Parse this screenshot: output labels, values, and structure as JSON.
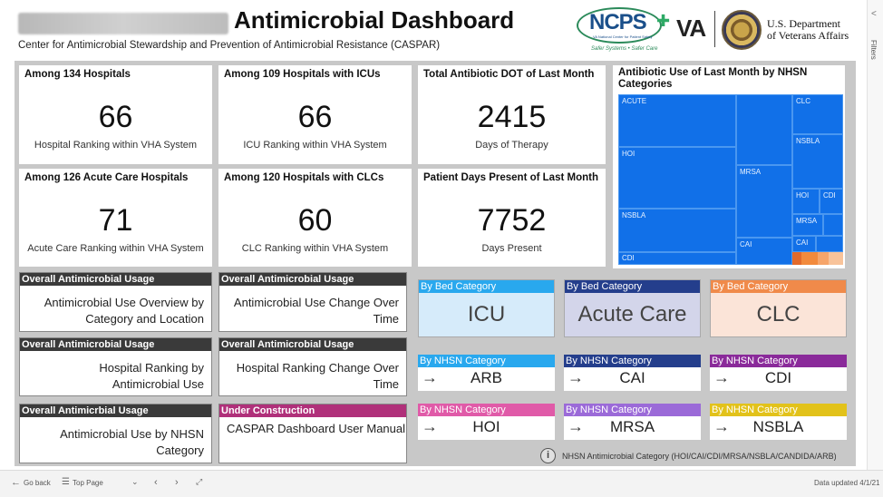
{
  "header": {
    "title": "Antimicrobial Dashboard",
    "subtitle": "Center for Antimicrobial Stewardship and Prevention of Antimicrobial Resistance (CASPAR)",
    "ncps": {
      "name": "NCPS",
      "sub": "VA National Center for Patient Safety",
      "tagline": "Safer Systems • Safer Care"
    },
    "va": "VA",
    "department": "U.S. Department\nof Veterans Affairs"
  },
  "filters_rail": {
    "label": "Filters",
    "chevron": "<"
  },
  "kpis": [
    {
      "label": "Among 134 Hospitals",
      "value": "66",
      "caption": "Hospital Ranking within VHA System"
    },
    {
      "label": "Among 109 Hospitals with ICUs",
      "value": "66",
      "caption": "ICU Ranking within VHA System"
    },
    {
      "label": "Total Antibiotic DOT of Last Month",
      "value": "2415",
      "caption": "Days of Therapy"
    },
    {
      "label": "Among 126 Acute Care Hospitals",
      "value": "71",
      "caption": "Acute Care Ranking within VHA System"
    },
    {
      "label": "Among 120 Hospitals with CLCs",
      "value": "60",
      "caption": "CLC Ranking within VHA System"
    },
    {
      "label": "Patient Days Present of Last Month",
      "value": "7752",
      "caption": "Days Present"
    }
  ],
  "treemap": {
    "title": "Antibiotic Use of Last Month by NHSN Categories",
    "cells": [
      "ACUTE",
      "HOI",
      "NSBLA",
      "CDI",
      "MRSA",
      "CAI",
      "CLC",
      "NSBLA",
      "HOI",
      "CDI",
      "MRSA",
      "CAI"
    ]
  },
  "nav_cards": [
    {
      "header": "Overall Antimicrobial Usage",
      "body": "Antimicrobial Use Overview by\nCategory and Location"
    },
    {
      "header": "Overall Antimicrobial Usage",
      "body": "Antimicrobial Use Change Over\nTime"
    },
    {
      "header": "Overall Antimicrobial Usage",
      "body": "Hospital Ranking by\nAntimicrobial Use"
    },
    {
      "header": "Overall Antimicrobial Usage",
      "body": "Hospital Ranking Change Over\nTime"
    },
    {
      "header": "Overall Antimicrbial Usage",
      "body": "Antimicrobial Use by NHSN\nCategory"
    },
    {
      "header": "Under Construction",
      "body": "CASPAR Dashboard User Manual"
    }
  ],
  "bed_categories": [
    {
      "header": "By Bed Category",
      "value": "ICU",
      "header_color": "#29a8ee",
      "bg_color": "#d6ebfa"
    },
    {
      "header": "By Bed Category",
      "value": "Acute Care",
      "header_color": "#243e8c",
      "bg_color": "#d3d5ea"
    },
    {
      "header": "By Bed Category",
      "value": "CLC",
      "header_color": "#f08a4a",
      "bg_color": "#fbe4d8"
    }
  ],
  "nhsn_categories": [
    {
      "header": "By NHSN Category",
      "value": "ARB",
      "color": "#29a8ee"
    },
    {
      "header": "By NHSN Category",
      "value": "CAI",
      "color": "#243e8c"
    },
    {
      "header": "By NHSN Category",
      "value": "CDI",
      "color": "#8a2a9a"
    },
    {
      "header": "By NHSN Category",
      "value": "HOI",
      "color": "#e05aa8"
    },
    {
      "header": "By NHSN Category",
      "value": "MRSA",
      "color": "#9b6ad8"
    },
    {
      "header": "By NHSN Category",
      "value": "NSBLA",
      "color": "#e2c21a"
    }
  ],
  "arrow_glyph": "→",
  "footnote": {
    "icon": "i",
    "text": "NHSN Antimicrobial Category (HOI/CAI/CDI/MRSA/NSBLA/CANDIDA/ARB)"
  },
  "bottom_bar": {
    "go_back": "Go back",
    "top_page": "Top Page",
    "data_updated": "Data updated 4/1/21"
  }
}
